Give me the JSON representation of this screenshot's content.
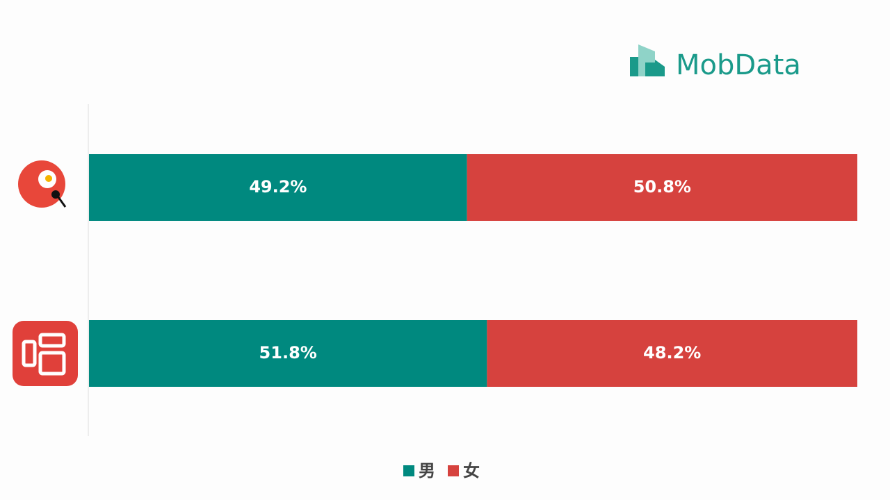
{
  "chart_data": {
    "type": "stacked_bar_horizontal",
    "logo": "MobData",
    "categories": [
      null,
      null
    ],
    "series": [
      {
        "name": "男",
        "color": "#00897f",
        "values": [
          49.2,
          51.8
        ],
        "value_labels": [
          "49.2%",
          "51.8%"
        ]
      },
      {
        "name": "女",
        "color": "#d6423e",
        "values": [
          50.8,
          48.2
        ],
        "value_labels": [
          "50.8%",
          "48.2%"
        ]
      }
    ],
    "xlim": [
      0,
      100
    ],
    "legend": "bottom"
  }
}
